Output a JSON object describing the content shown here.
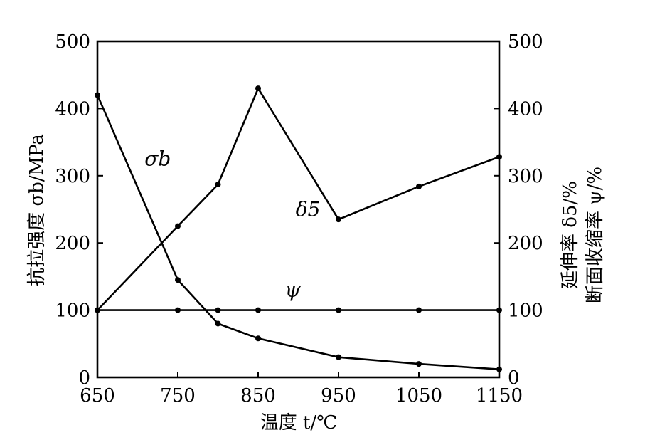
{
  "chart_data": {
    "type": "line",
    "xlabel": "温度 t/℃",
    "ylabel_left": "抗拉强度 σb/MPa",
    "ylabel_right_line1": "延伸率 δ5/%",
    "ylabel_right_line2": "断面收缩率 ψ/%",
    "xlim": [
      650,
      1150
    ],
    "ylim": [
      0,
      500
    ],
    "xticks": [
      "650",
      "750",
      "850",
      "950",
      "1050",
      "1150"
    ],
    "yticks_left": [
      "0",
      "100",
      "200",
      "300",
      "400",
      "500"
    ],
    "yticks_right": [
      "0",
      "100",
      "200",
      "300",
      "400",
      "500"
    ],
    "grid": false,
    "series": [
      {
        "name": "σb",
        "x": [
          650,
          750,
          800,
          850,
          950,
          1050,
          1150
        ],
        "y": [
          420,
          145,
          80,
          58,
          30,
          20,
          12
        ],
        "label_at": [
          725,
          315
        ]
      },
      {
        "name": "δ5",
        "x": [
          650,
          750,
          800,
          850,
          950,
          1050,
          1150
        ],
        "y": [
          100,
          225,
          287,
          430,
          235,
          284,
          328
        ],
        "label_at": [
          912,
          240
        ]
      },
      {
        "name": "ψ",
        "x": [
          650,
          750,
          800,
          850,
          950,
          1050,
          1150
        ],
        "y": [
          100,
          100,
          100,
          100,
          100,
          100,
          100
        ],
        "label_at": [
          893,
          120
        ]
      }
    ]
  }
}
